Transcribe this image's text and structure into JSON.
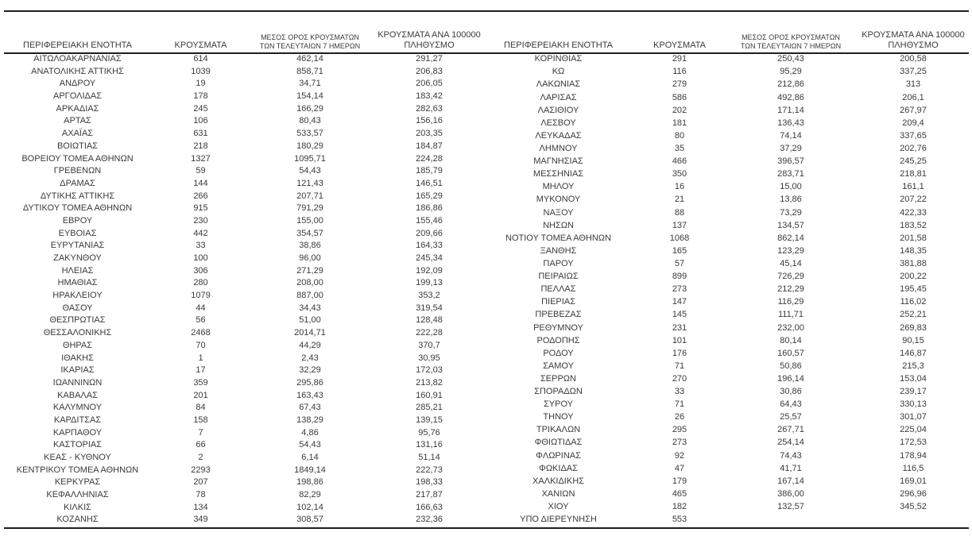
{
  "document": {
    "colors": {
      "text": "#3a3a3a",
      "rule": "#1f1f1f",
      "background": "#ffffff"
    },
    "headers": {
      "region": "ΠΕΡΙΦΕΡΕΙΑΚΗ ΕΝΟΤΗΤΑ",
      "cases": "ΚΡΟΥΣΜΑΤΑ",
      "avg7_line1": "ΜΕΣΟΣ ΟΡΟΣ ΚΡΟΥΣΜΑΤΩΝ",
      "avg7_line2": "ΤΩΝ ΤΕΛΕΥΤΑΙΩΝ 7 ΗΜΕΡΩΝ",
      "per100k_line1": "ΚΡΟΥΣΜΑΤΑ ΑΝΑ 100000",
      "per100k_line2": "ΠΛΗΘΥΣΜΟ"
    },
    "left_table": {
      "rows": [
        [
          "ΑΙΤΩΛΟΑΚΑΡΝΑΝΙΑΣ",
          "614",
          "462,14",
          "291,27"
        ],
        [
          "ΑΝΑΤΟΛΙΚΗΣ ΑΤΤΙΚΗΣ",
          "1039",
          "858,71",
          "206,83"
        ],
        [
          "ΑΝΔΡΟΥ",
          "19",
          "34,71",
          "206,05"
        ],
        [
          "ΑΡΓΟΛΙΔΑΣ",
          "178",
          "154,14",
          "183,42"
        ],
        [
          "ΑΡΚΑΔΙΑΣ",
          "245",
          "166,29",
          "282,63"
        ],
        [
          "ΑΡΤΑΣ",
          "106",
          "80,43",
          "156,16"
        ],
        [
          "ΑΧΑΪΑΣ",
          "631",
          "533,57",
          "203,35"
        ],
        [
          "ΒΟΙΩΤΙΑΣ",
          "218",
          "180,29",
          "184,87"
        ],
        [
          "ΒΟΡΕΙΟΥ ΤΟΜΕΑ ΑΘΗΝΩΝ",
          "1327",
          "1095,71",
          "224,28"
        ],
        [
          "ΓΡΕΒΕΝΩΝ",
          "59",
          "54,43",
          "185,79"
        ],
        [
          "ΔΡΑΜΑΣ",
          "144",
          "121,43",
          "146,51"
        ],
        [
          "ΔΥΤΙΚΗΣ ΑΤΤΙΚΗΣ",
          "266",
          "207,71",
          "165,29"
        ],
        [
          "ΔΥΤΙΚΟΥ ΤΟΜΕΑ ΑΘΗΝΩΝ",
          "915",
          "791,29",
          "186,86"
        ],
        [
          "ΕΒΡΟΥ",
          "230",
          "155,00",
          "155,46"
        ],
        [
          "ΕΥΒΟΙΑΣ",
          "442",
          "354,57",
          "209,66"
        ],
        [
          "ΕΥΡΥΤΑΝΙΑΣ",
          "33",
          "38,86",
          "164,33"
        ],
        [
          "ΖΑΚΥΝΘΟΥ",
          "100",
          "96,00",
          "245,34"
        ],
        [
          "ΗΛΕΙΑΣ",
          "306",
          "271,29",
          "192,09"
        ],
        [
          "ΗΜΑΘΙΑΣ",
          "280",
          "208,00",
          "199,13"
        ],
        [
          "ΗΡΑΚΛΕΙΟΥ",
          "1079",
          "887,00",
          "353,2"
        ],
        [
          "ΘΑΣΟΥ",
          "44",
          "34,43",
          "319,54"
        ],
        [
          "ΘΕΣΠΡΩΤΙΑΣ",
          "56",
          "51,00",
          "128,48"
        ],
        [
          "ΘΕΣΣΑΛΟΝΙΚΗΣ",
          "2468",
          "2014,71",
          "222,28"
        ],
        [
          "ΘΗΡΑΣ",
          "70",
          "44,29",
          "370,7"
        ],
        [
          "ΙΘΑΚΗΣ",
          "1",
          "2,43",
          "30,95"
        ],
        [
          "ΙΚΑΡΙΑΣ",
          "17",
          "32,29",
          "172,03"
        ],
        [
          "ΙΩΑΝΝΙΝΩΝ",
          "359",
          "295,86",
          "213,82"
        ],
        [
          "ΚΑΒΑΛΑΣ",
          "201",
          "163,43",
          "160,91"
        ],
        [
          "ΚΑΛΥΜΝΟΥ",
          "84",
          "67,43",
          "285,21"
        ],
        [
          "ΚΑΡΔΙΤΣΑΣ",
          "158",
          "138,29",
          "139,15"
        ],
        [
          "ΚΑΡΠΑΘΟΥ",
          "7",
          "4,86",
          "95,76"
        ],
        [
          "ΚΑΣΤΟΡΙΑΣ",
          "66",
          "54,43",
          "131,16"
        ],
        [
          "ΚΕΑΣ - ΚΥΘΝΟΥ",
          "2",
          "6,14",
          "51,14"
        ],
        [
          "ΚΕΝΤΡΙΚΟΥ ΤΟΜΕΑ ΑΘΗΝΩΝ",
          "2293",
          "1849,14",
          "222,73"
        ],
        [
          "ΚΕΡΚΥΡΑΣ",
          "207",
          "198,86",
          "198,33"
        ],
        [
          "ΚΕΦΑΛΛΗΝΙΑΣ",
          "78",
          "82,29",
          "217,87"
        ],
        [
          "ΚΙΛΚΙΣ",
          "134",
          "102,14",
          "166,63"
        ],
        [
          "ΚΟΖΑΝΗΣ",
          "349",
          "308,57",
          "232,36"
        ]
      ]
    },
    "right_table": {
      "rows": [
        [
          "ΚΟΡΙΝΘΙΑΣ",
          "291",
          "250,43",
          "200,58"
        ],
        [
          "ΚΩ",
          "116",
          "95,29",
          "337,25"
        ],
        [
          "ΛΑΚΩΝΙΑΣ",
          "279",
          "212,86",
          "313"
        ],
        [
          "ΛΑΡΙΣΑΣ",
          "586",
          "492,86",
          "206,1"
        ],
        [
          "ΛΑΣΙΘΙΟΥ",
          "202",
          "171,14",
          "267,97"
        ],
        [
          "ΛΕΣΒΟΥ",
          "181",
          "136,43",
          "209,4"
        ],
        [
          "ΛΕΥΚΑΔΑΣ",
          "80",
          "74,14",
          "337,65"
        ],
        [
          "ΛΗΜΝΟΥ",
          "35",
          "37,29",
          "202,76"
        ],
        [
          "ΜΑΓΝΗΣΙΑΣ",
          "466",
          "396,57",
          "245,25"
        ],
        [
          "ΜΕΣΣΗΝΙΑΣ",
          "350",
          "283,71",
          "218,81"
        ],
        [
          "ΜΗΛΟΥ",
          "16",
          "15,00",
          "161,1"
        ],
        [
          "ΜΥΚΟΝΟΥ",
          "21",
          "13,86",
          "207,22"
        ],
        [
          "ΝΑΞΟΥ",
          "88",
          "73,29",
          "422,33"
        ],
        [
          "ΝΗΣΩΝ",
          "137",
          "134,57",
          "183,52"
        ],
        [
          "ΝΟΤΙΟΥ ΤΟΜΕΑ ΑΘΗΝΩΝ",
          "1068",
          "862,14",
          "201,58"
        ],
        [
          "ΞΑΝΘΗΣ",
          "165",
          "123,29",
          "148,35"
        ],
        [
          "ΠΑΡΟΥ",
          "57",
          "45,14",
          "381,88"
        ],
        [
          "ΠΕΙΡΑΙΩΣ",
          "899",
          "726,29",
          "200,22"
        ],
        [
          "ΠΕΛΛΑΣ",
          "273",
          "212,29",
          "195,45"
        ],
        [
          "ΠΙΕΡΙΑΣ",
          "147",
          "116,29",
          "116,02"
        ],
        [
          "ΠΡΕΒΕΖΑΣ",
          "145",
          "111,71",
          "252,21"
        ],
        [
          "ΡΕΘΥΜΝΟΥ",
          "231",
          "232,00",
          "269,83"
        ],
        [
          "ΡΟΔΟΠΗΣ",
          "101",
          "80,14",
          "90,15"
        ],
        [
          "ΡΟΔΟΥ",
          "176",
          "160,57",
          "146,87"
        ],
        [
          "ΣΑΜΟΥ",
          "71",
          "50,86",
          "215,3"
        ],
        [
          "ΣΕΡΡΩΝ",
          "270",
          "196,14",
          "153,04"
        ],
        [
          "ΣΠΟΡΑΔΩΝ",
          "33",
          "30,86",
          "239,17"
        ],
        [
          "ΣΥΡΟΥ",
          "71",
          "64,43",
          "330,13"
        ],
        [
          "ΤΗΝΟΥ",
          "26",
          "25,57",
          "301,07"
        ],
        [
          "ΤΡΙΚΑΛΩΝ",
          "295",
          "267,71",
          "225,04"
        ],
        [
          "ΦΘΙΩΤΙΔΑΣ",
          "273",
          "254,14",
          "172,53"
        ],
        [
          "ΦΛΩΡΙΝΑΣ",
          "92",
          "74,43",
          "178,94"
        ],
        [
          "ΦΩΚΙΔΑΣ",
          "47",
          "41,71",
          "116,5"
        ],
        [
          "ΧΑΛΚΙΔΙΚΗΣ",
          "179",
          "167,14",
          "169,01"
        ],
        [
          "ΧΑΝΙΩΝ",
          "465",
          "386,00",
          "296,96"
        ],
        [
          "ΧΙΟΥ",
          "182",
          "132,57",
          "345,52"
        ],
        [
          "ΥΠΟ ΔΙΕΡΕΥΝΗΣΗ",
          "553",
          "",
          ""
        ]
      ]
    }
  }
}
